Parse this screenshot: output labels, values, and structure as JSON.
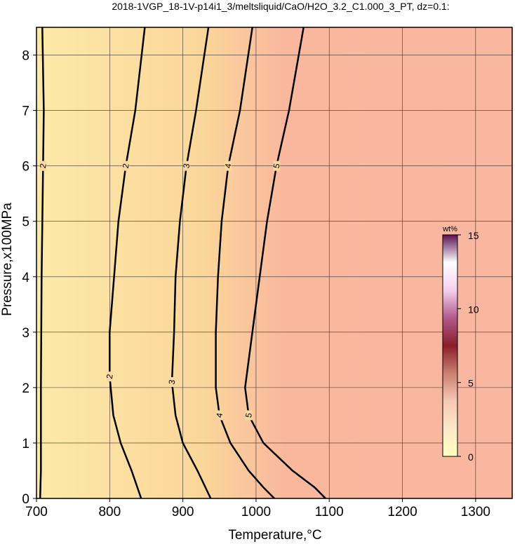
{
  "chart_data": {
    "type": "contour",
    "title": "2018-1VGP_18-1V-p14i1_3/meltsliquid/CaO/H2O_3.2_C1.000_3_PT, dz=0.1:",
    "x_label": "Temperature,°C",
    "y_label": "Pressure,x100MPa",
    "xlim": [
      700,
      1350
    ],
    "ylim": [
      0,
      8.5
    ],
    "xticks": [
      700,
      800,
      900,
      1000,
      1100,
      1200,
      1300
    ],
    "yticks": [
      0,
      1,
      2,
      3,
      4,
      5,
      6,
      7,
      8
    ],
    "grid": true,
    "line_color": "#000000",
    "contours": [
      {
        "level": 2,
        "x": [
          708,
          710,
          709,
          707,
          706,
          706,
          705
        ],
        "y": [
          8.5,
          7,
          6,
          4,
          2,
          0.5,
          0
        ]
      },
      {
        "level": 2,
        "x": [
          848,
          835,
          822,
          812,
          806,
          800,
          800,
          805,
          815,
          830,
          843
        ],
        "y": [
          8.5,
          7,
          6,
          5,
          4,
          3,
          2.2,
          1.5,
          1,
          0.5,
          0
        ]
      },
      {
        "level": 3,
        "x": [
          935,
          918,
          905,
          896,
          890,
          888,
          885,
          890,
          900,
          920,
          938
        ],
        "y": [
          8.5,
          7,
          6,
          5,
          4,
          3,
          2.1,
          1.5,
          1,
          0.5,
          0
        ]
      },
      {
        "level": 4,
        "x": [
          995,
          978,
          962,
          953,
          948,
          945,
          945,
          950,
          965,
          990,
          1010,
          1025
        ],
        "y": [
          8.5,
          7,
          6,
          5,
          4,
          3,
          2,
          1.5,
          1,
          0.5,
          0.2,
          0
        ]
      },
      {
        "level": 5,
        "x": [
          1065,
          1045,
          1028,
          1015,
          1005,
          995,
          985,
          990,
          1010,
          1050,
          1080,
          1095
        ],
        "y": [
          8.5,
          7,
          6,
          5,
          4,
          3,
          2,
          1.5,
          1,
          0.5,
          0.2,
          0
        ]
      }
    ],
    "colorbar": {
      "label": "wt%",
      "lim": [
        0,
        15
      ],
      "ticks": [
        0,
        5,
        10,
        15
      ],
      "colors": [
        "#ffffc0",
        "#fbe8c8",
        "#f6c9b6",
        "#c98070",
        "#8a1f2a",
        "#b05a8c",
        "#f5d0ec",
        "#ffffff",
        "#5a1050"
      ]
    }
  }
}
